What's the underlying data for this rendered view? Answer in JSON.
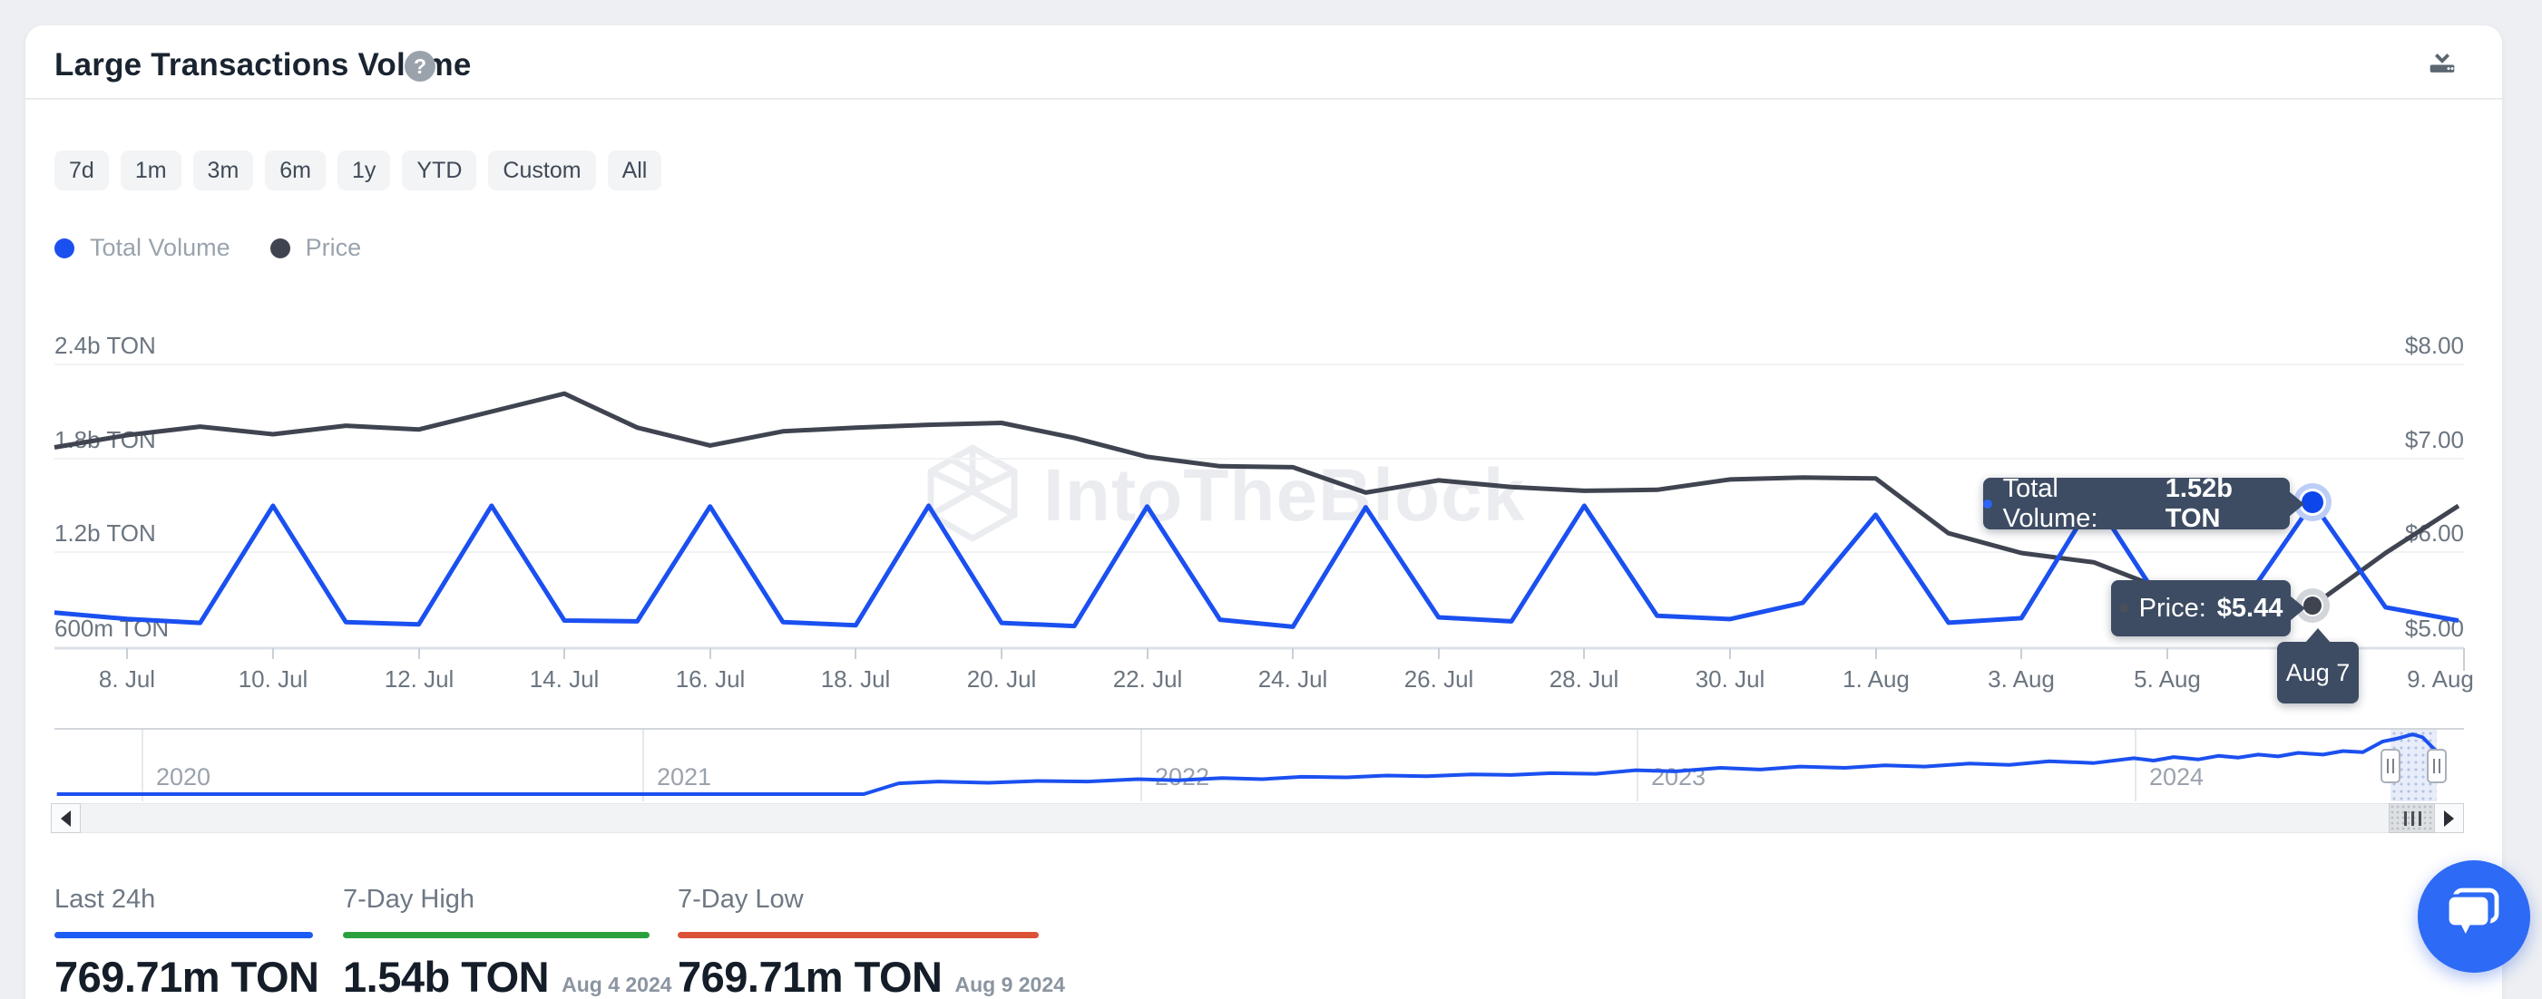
{
  "header": {
    "title": "Large Transactions Volume",
    "help_symbol": "?"
  },
  "range_buttons": [
    "7d",
    "1m",
    "3m",
    "6m",
    "1y",
    "YTD",
    "Custom",
    "All"
  ],
  "legend": {
    "items": [
      {
        "label": "Total Volume",
        "color": "#1b50f0"
      },
      {
        "label": "Price",
        "color": "#3f4450"
      }
    ]
  },
  "watermark": "IntoTheBlock",
  "chart_data": {
    "type": "line",
    "title": "Large Transactions Volume",
    "x": [
      "Jul 7",
      "Jul 8",
      "Jul 9",
      "Jul 10",
      "Jul 11",
      "Jul 12",
      "Jul 13",
      "Jul 14",
      "Jul 15",
      "Jul 16",
      "Jul 17",
      "Jul 18",
      "Jul 19",
      "Jul 20",
      "Jul 21",
      "Jul 22",
      "Jul 23",
      "Jul 24",
      "Jul 25",
      "Jul 26",
      "Jul 27",
      "Jul 28",
      "Jul 29",
      "Jul 30",
      "Jul 31",
      "Aug 1",
      "Aug 2",
      "Aug 3",
      "Aug 4",
      "Aug 5",
      "Aug 6",
      "Aug 7",
      "Aug 8",
      "Aug 9"
    ],
    "series": [
      {
        "name": "Total Volume",
        "unit": "TON",
        "axis": "left",
        "color": "#1b50f0",
        "values_millions": [
          820,
          780,
          755,
          1500,
          760,
          745,
          1500,
          770,
          765,
          1495,
          760,
          740,
          1500,
          755,
          735,
          1495,
          775,
          730,
          1490,
          790,
          765,
          1500,
          800,
          779,
          883,
          1442,
          756,
          785,
          1540,
          825,
          850,
          1520,
          854,
          769.71
        ]
      },
      {
        "name": "Price",
        "unit": "USD",
        "axis": "right",
        "color": "#3f4450",
        "values_usd": [
          7.12,
          7.25,
          7.34,
          7.26,
          7.35,
          7.31,
          7.5,
          7.69,
          7.33,
          7.14,
          7.29,
          7.33,
          7.36,
          7.38,
          7.22,
          7.02,
          6.92,
          6.91,
          6.64,
          6.77,
          6.7,
          6.66,
          6.67,
          6.78,
          6.8,
          6.79,
          6.21,
          6.0,
          5.9,
          5.6,
          5.38,
          5.44,
          6.0,
          6.5
        ]
      }
    ],
    "left_axis": {
      "labels": [
        "2.4b TON",
        "1.8b TON",
        "1.2b TON",
        "600m TON"
      ],
      "min_millions": 600,
      "max_millions": 2400
    },
    "right_axis": {
      "labels": [
        "$8.00",
        "$7.00",
        "$6.00",
        "$5.00"
      ],
      "min": 5,
      "max": 8
    },
    "x_tick_labels": [
      "8. Jul",
      "10. Jul",
      "12. Jul",
      "14. Jul",
      "16. Jul",
      "18. Jul",
      "20. Jul",
      "22. Jul",
      "24. Jul",
      "26. Jul",
      "28. Jul",
      "30. Jul",
      "1. Aug",
      "3. Aug",
      "5. Aug",
      "9. Aug"
    ],
    "grid": true,
    "legend_position": "top-left",
    "navigator": {
      "years": [
        "2020",
        "2021",
        "2022",
        "2023",
        "2024"
      ],
      "points": [
        [
          2019.83,
          0.0
        ],
        [
          2021.45,
          0.0
        ],
        [
          2021.52,
          0.18
        ],
        [
          2021.6,
          0.21
        ],
        [
          2021.7,
          0.19
        ],
        [
          2021.8,
          0.22
        ],
        [
          2021.9,
          0.21
        ],
        [
          2022.0,
          0.25
        ],
        [
          2022.08,
          0.23
        ],
        [
          2022.17,
          0.27
        ],
        [
          2022.25,
          0.25
        ],
        [
          2022.33,
          0.29
        ],
        [
          2022.42,
          0.28
        ],
        [
          2022.5,
          0.31
        ],
        [
          2022.58,
          0.3
        ],
        [
          2022.67,
          0.33
        ],
        [
          2022.75,
          0.32
        ],
        [
          2022.83,
          0.35
        ],
        [
          2022.92,
          0.34
        ],
        [
          2023.0,
          0.4
        ],
        [
          2023.08,
          0.38
        ],
        [
          2023.17,
          0.44
        ],
        [
          2023.25,
          0.41
        ],
        [
          2023.33,
          0.46
        ],
        [
          2023.42,
          0.44
        ],
        [
          2023.5,
          0.48
        ],
        [
          2023.58,
          0.46
        ],
        [
          2023.67,
          0.51
        ],
        [
          2023.75,
          0.49
        ],
        [
          2023.83,
          0.55
        ],
        [
          2023.92,
          0.52
        ],
        [
          2024.0,
          0.6
        ],
        [
          2024.04,
          0.56
        ],
        [
          2024.08,
          0.62
        ],
        [
          2024.13,
          0.58
        ],
        [
          2024.17,
          0.64
        ],
        [
          2024.21,
          0.61
        ],
        [
          2024.25,
          0.66
        ],
        [
          2024.29,
          0.63
        ],
        [
          2024.33,
          0.69
        ],
        [
          2024.38,
          0.66
        ],
        [
          2024.42,
          0.72
        ],
        [
          2024.46,
          0.7
        ],
        [
          2024.5,
          0.88
        ],
        [
          2024.53,
          0.93
        ],
        [
          2024.56,
          1.0
        ],
        [
          2024.58,
          0.95
        ],
        [
          2024.6,
          0.78
        ],
        [
          2024.61,
          0.7
        ]
      ]
    }
  },
  "tooltips": {
    "volume": {
      "label": "Total Volume:",
      "value": "1.52b TON"
    },
    "price": {
      "label": "Price:",
      "value": "$5.44"
    },
    "date": "Aug 7"
  },
  "stats": {
    "items": [
      {
        "label": "Last 24h",
        "value": "769.71m TON",
        "date": "",
        "underline_color": "#1d5cf5"
      },
      {
        "label": "7-Day High",
        "value": "1.54b TON",
        "date": "Aug 4 2024",
        "underline_color": "#2aa13c"
      },
      {
        "label": "7-Day Low",
        "value": "769.71m TON",
        "date": "Aug 9 2024",
        "underline_color": "#dc5237"
      }
    ]
  }
}
